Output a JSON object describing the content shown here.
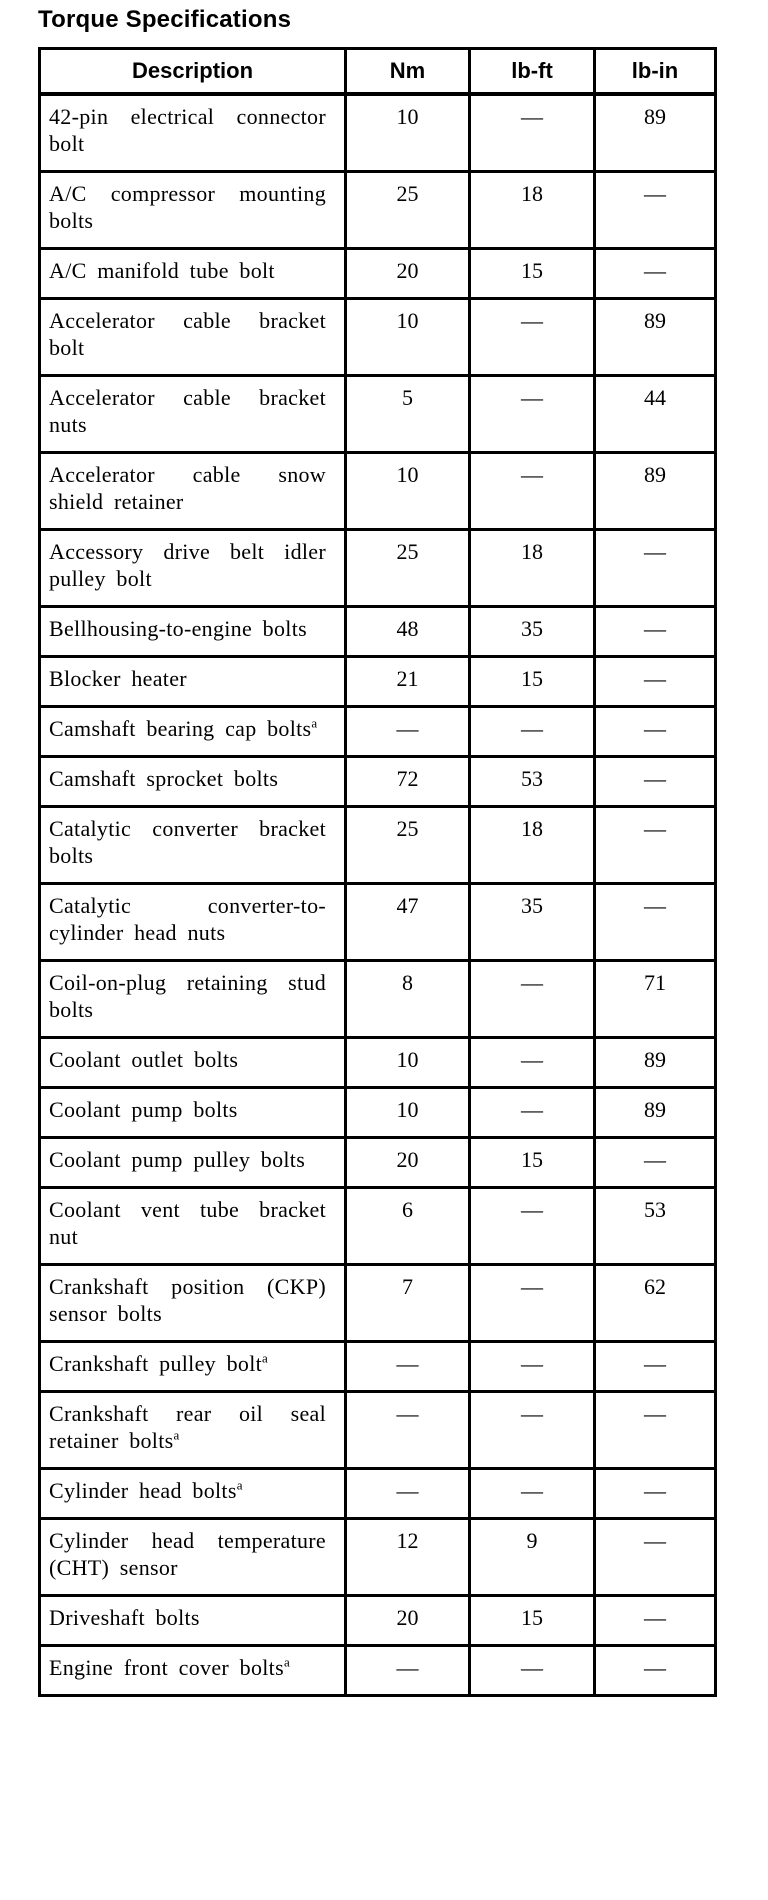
{
  "page_title": "Torque Specifications",
  "table": {
    "columns": [
      {
        "label": "Description"
      },
      {
        "label": "Nm"
      },
      {
        "label": "lb-ft"
      },
      {
        "label": "lb-in"
      }
    ],
    "rows": [
      {
        "description": "42-pin electrical connector bolt",
        "note": "",
        "nm": "10",
        "lbft": "—",
        "lbin": "89"
      },
      {
        "description": "A/C compressor mounting bolts",
        "note": "",
        "nm": "25",
        "lbft": "18",
        "lbin": "—"
      },
      {
        "description": "A/C manifold tube bolt",
        "note": "",
        "nm": "20",
        "lbft": "15",
        "lbin": "—"
      },
      {
        "description": "Accelerator cable bracket bolt",
        "note": "",
        "nm": "10",
        "lbft": "—",
        "lbin": "89"
      },
      {
        "description": "Accelerator cable bracket nuts",
        "note": "",
        "nm": "5",
        "lbft": "—",
        "lbin": "44"
      },
      {
        "description": "Accelerator cable snow shield retainer",
        "note": "",
        "nm": "10",
        "lbft": "—",
        "lbin": "89"
      },
      {
        "description": "Accessory drive belt idler pulley bolt",
        "note": "",
        "nm": "25",
        "lbft": "18",
        "lbin": "—"
      },
      {
        "description": "Bellhousing-to-engine bolts",
        "note": "",
        "nm": "48",
        "lbft": "35",
        "lbin": "—"
      },
      {
        "description": "Blocker heater",
        "note": "",
        "nm": "21",
        "lbft": "15",
        "lbin": "—"
      },
      {
        "description": "Camshaft bearing cap bolts",
        "note": "a",
        "nm": "—",
        "lbft": "—",
        "lbin": "—"
      },
      {
        "description": "Camshaft sprocket bolts",
        "note": "",
        "nm": "72",
        "lbft": "53",
        "lbin": "—"
      },
      {
        "description": "Catalytic converter bracket bolts",
        "note": "",
        "nm": "25",
        "lbft": "18",
        "lbin": "—"
      },
      {
        "description": "Catalytic converter-to-cylinder head nuts",
        "note": "",
        "nm": "47",
        "lbft": "35",
        "lbin": "—"
      },
      {
        "description": "Coil-on-plug retaining stud bolts",
        "note": "",
        "nm": "8",
        "lbft": "—",
        "lbin": "71"
      },
      {
        "description": "Coolant outlet bolts",
        "note": "",
        "nm": "10",
        "lbft": "—",
        "lbin": "89"
      },
      {
        "description": "Coolant pump bolts",
        "note": "",
        "nm": "10",
        "lbft": "—",
        "lbin": "89"
      },
      {
        "description": "Coolant pump pulley bolts",
        "note": "",
        "nm": "20",
        "lbft": "15",
        "lbin": "—"
      },
      {
        "description": "Coolant vent tube bracket nut",
        "note": "",
        "nm": "6",
        "lbft": "—",
        "lbin": "53"
      },
      {
        "description": "Crankshaft position (CKP) sensor bolts",
        "note": "",
        "nm": "7",
        "lbft": "—",
        "lbin": "62"
      },
      {
        "description": "Crankshaft pulley bolt",
        "note": "a",
        "nm": "—",
        "lbft": "—",
        "lbin": "—"
      },
      {
        "description": "Crankshaft rear oil seal retainer bolts",
        "note": "a",
        "nm": "—",
        "lbft": "—",
        "lbin": "—"
      },
      {
        "description": "Cylinder head bolts",
        "note": "a",
        "nm": "—",
        "lbft": "—",
        "lbin": "—"
      },
      {
        "description": "Cylinder head temperature (CHT) sensor",
        "note": "",
        "nm": "12",
        "lbft": "9",
        "lbin": "—"
      },
      {
        "description": "Driveshaft bolts",
        "note": "",
        "nm": "20",
        "lbft": "15",
        "lbin": "—"
      },
      {
        "description": "Engine front cover bolts",
        "note": "a",
        "nm": "—",
        "lbft": "—",
        "lbin": "—"
      }
    ]
  }
}
